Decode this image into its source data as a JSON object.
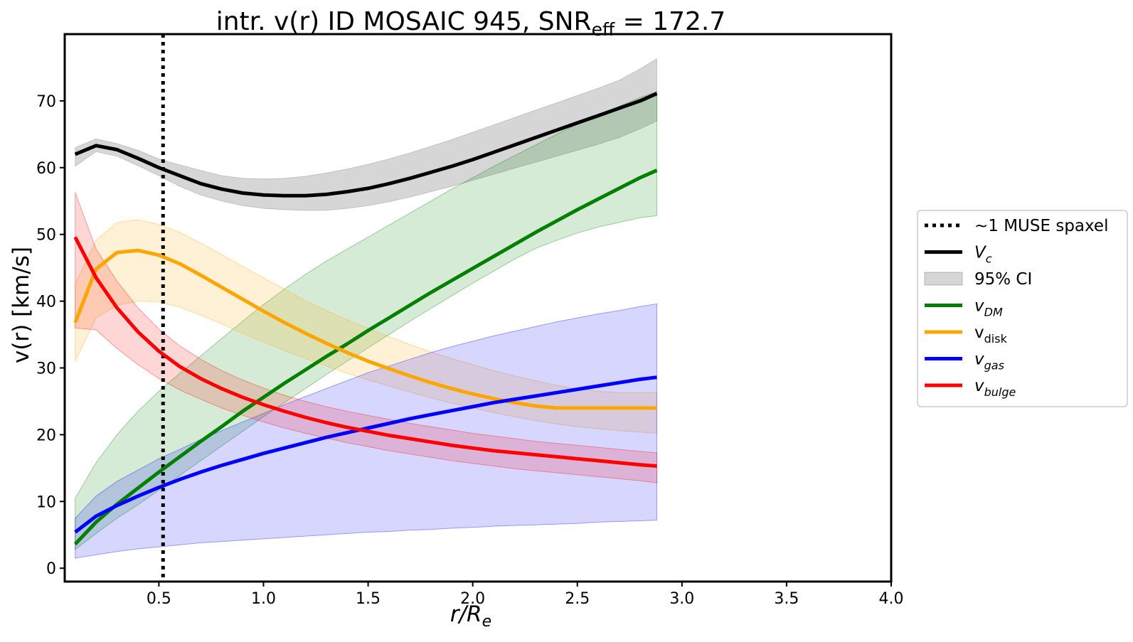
{
  "chart_data": {
    "type": "line",
    "title": "intr. v(r) ID MOSAIC 945, SNR",
    "title_sub": "eff",
    "title_suffix": " = 172.7",
    "xlabel": "r/R",
    "xlabel_sub": "e",
    "ylabel": "v(r) [km/s]",
    "xlim": [
      0.05,
      4.0
    ],
    "ylim": [
      -2,
      80
    ],
    "xticks": [
      0.5,
      1.0,
      1.5,
      2.0,
      2.5,
      3.0,
      3.5,
      4.0
    ],
    "xtick_labels": [
      "0.5",
      "1.0",
      "1.5",
      "2.0",
      "2.5",
      "3.0",
      "3.5",
      "4.0"
    ],
    "yticks": [
      0,
      10,
      20,
      30,
      40,
      50,
      60,
      70
    ],
    "ytick_labels": [
      "0",
      "10",
      "20",
      "30",
      "40",
      "50",
      "60",
      "70"
    ],
    "vline": {
      "x": 0.52,
      "label": "~1 MUSE spaxel"
    },
    "ci_label": "95% CI",
    "x": [
      0.1,
      0.2,
      0.3,
      0.4,
      0.5,
      0.6,
      0.7,
      0.8,
      0.9,
      1.0,
      1.1,
      1.2,
      1.3,
      1.4,
      1.5,
      1.6,
      1.7,
      1.8,
      1.9,
      2.0,
      2.1,
      2.2,
      2.3,
      2.4,
      2.5,
      2.6,
      2.7,
      2.8,
      2.88
    ],
    "series": [
      {
        "name": "V_c",
        "label": "V",
        "sub": "c",
        "italic": true,
        "color": "#000000",
        "band_color": "#808080",
        "values": [
          62.0,
          63.3,
          62.7,
          61.4,
          60.0,
          58.8,
          57.6,
          56.8,
          56.2,
          55.9,
          55.8,
          55.8,
          56.0,
          56.4,
          56.9,
          57.6,
          58.4,
          59.3,
          60.2,
          61.2,
          62.3,
          63.4,
          64.5,
          65.6,
          66.7,
          67.8,
          68.9,
          70.0,
          71.1
        ],
        "lower": [
          60.2,
          62.4,
          61.7,
          60.3,
          58.8,
          57.2,
          55.9,
          55.0,
          54.3,
          53.9,
          53.7,
          53.6,
          53.6,
          53.9,
          54.3,
          54.9,
          55.6,
          56.4,
          57.2,
          58.1,
          59.0,
          59.9,
          60.8,
          61.7,
          62.6,
          63.5,
          64.5,
          65.8,
          67.0
        ],
        "upper": [
          63.0,
          64.3,
          63.6,
          62.6,
          61.3,
          60.4,
          59.6,
          58.8,
          58.4,
          58.3,
          58.4,
          58.7,
          59.2,
          59.8,
          60.5,
          61.3,
          62.2,
          63.2,
          64.2,
          65.3,
          66.4,
          67.5,
          68.6,
          69.7,
          70.8,
          71.9,
          73.1,
          74.8,
          76.3
        ]
      },
      {
        "name": "v_DM",
        "label": "v",
        "sub": "DM",
        "italic": true,
        "color": "#008000",
        "band_color": "#008000",
        "values": [
          3.6,
          6.9,
          9.6,
          12.0,
          14.4,
          16.7,
          19.0,
          21.2,
          23.5,
          25.6,
          27.7,
          29.7,
          31.7,
          33.6,
          35.6,
          37.5,
          39.4,
          41.3,
          43.1,
          44.9,
          46.7,
          48.5,
          50.3,
          52.0,
          53.7,
          55.3,
          56.9,
          58.5,
          59.6
        ],
        "lower": [
          2.8,
          5.2,
          7.5,
          9.5,
          11.7,
          13.9,
          16.1,
          18.3,
          20.5,
          22.7,
          24.8,
          26.9,
          29.0,
          31.0,
          33.0,
          35.0,
          37.0,
          38.9,
          40.8,
          42.7,
          44.5,
          46.3,
          47.9,
          49.1,
          50.2,
          51.1,
          51.8,
          52.5,
          52.8
        ],
        "upper": [
          10.5,
          15.8,
          20.0,
          23.5,
          26.5,
          29.2,
          31.8,
          34.4,
          37.0,
          39.5,
          41.8,
          44.0,
          46.0,
          47.8,
          49.6,
          51.4,
          53.2,
          55.0,
          56.8,
          58.5,
          60.2,
          61.8,
          63.4,
          65.0,
          66.5,
          67.9,
          69.2,
          70.5,
          71.4
        ]
      },
      {
        "name": "v_disk",
        "label": "v",
        "sub": "disk",
        "italic": false,
        "color": "#ffa500",
        "band_color": "#ffa500",
        "values": [
          36.8,
          44.8,
          47.3,
          47.6,
          46.9,
          45.6,
          43.9,
          42.1,
          40.3,
          38.5,
          36.8,
          35.2,
          33.7,
          32.3,
          31.0,
          29.9,
          28.8,
          27.8,
          26.9,
          26.1,
          25.4,
          24.8,
          24.3,
          24.0,
          24.0,
          24.0,
          24.0,
          24.0,
          24.0
        ],
        "lower": [
          31.0,
          37.5,
          39.4,
          40.0,
          39.9,
          39.1,
          37.9,
          36.6,
          35.2,
          33.9,
          32.6,
          31.4,
          30.3,
          29.2,
          28.2,
          27.3,
          26.4,
          25.5,
          24.7,
          24.0,
          23.3,
          22.7,
          22.1,
          21.6,
          21.2,
          20.9,
          20.6,
          20.4,
          20.2
        ],
        "upper": [
          42.6,
          49.1,
          51.8,
          52.2,
          51.5,
          50.3,
          48.7,
          47.0,
          45.2,
          43.5,
          41.8,
          40.1,
          38.6,
          37.2,
          35.9,
          34.7,
          33.5,
          32.4,
          31.4,
          30.5,
          29.6,
          28.8,
          28.1,
          27.4,
          26.9,
          26.5,
          26.3,
          26.3,
          26.3
        ]
      },
      {
        "name": "v_gas",
        "label": "v",
        "sub": "gas",
        "italic": true,
        "color": "#0000ff",
        "band_color": "#0000ff",
        "values": [
          5.4,
          7.8,
          9.4,
          10.8,
          12.1,
          13.3,
          14.4,
          15.4,
          16.3,
          17.2,
          18.0,
          18.8,
          19.6,
          20.3,
          21.0,
          21.7,
          22.4,
          23.0,
          23.6,
          24.2,
          24.8,
          25.3,
          25.8,
          26.3,
          26.8,
          27.3,
          27.8,
          28.3,
          28.6
        ],
        "lower": [
          1.5,
          2.0,
          2.5,
          2.9,
          3.2,
          3.5,
          3.8,
          4.0,
          4.2,
          4.4,
          4.6,
          4.8,
          5.0,
          5.2,
          5.4,
          5.5,
          5.7,
          5.8,
          6.0,
          6.1,
          6.3,
          6.4,
          6.5,
          6.6,
          6.7,
          6.9,
          7.0,
          7.1,
          7.2
        ],
        "upper": [
          7.5,
          10.8,
          13.0,
          14.7,
          16.4,
          17.8,
          19.3,
          20.6,
          21.9,
          23.2,
          24.5,
          25.7,
          26.9,
          28.1,
          29.3,
          30.3,
          31.3,
          32.3,
          33.2,
          34.0,
          34.8,
          35.5,
          36.2,
          36.9,
          37.5,
          38.1,
          38.6,
          39.2,
          39.6
        ]
      },
      {
        "name": "v_bulge",
        "label": "v",
        "sub": "bulge",
        "italic": true,
        "color": "#ff0000",
        "band_color": "#ff0000",
        "values": [
          49.6,
          43.5,
          39.0,
          35.4,
          32.5,
          30.2,
          28.4,
          26.9,
          25.6,
          24.5,
          23.5,
          22.6,
          21.8,
          21.1,
          20.5,
          19.9,
          19.4,
          18.9,
          18.4,
          18.0,
          17.6,
          17.3,
          17.0,
          16.7,
          16.4,
          16.1,
          15.8,
          15.5,
          15.3
        ],
        "lower": [
          36.0,
          35.7,
          32.9,
          30.5,
          28.4,
          26.7,
          25.3,
          24.0,
          22.9,
          21.9,
          21.0,
          20.2,
          19.5,
          18.8,
          18.2,
          17.6,
          17.1,
          16.6,
          16.1,
          15.7,
          15.3,
          14.9,
          14.6,
          14.3,
          14.0,
          13.7,
          13.4,
          13.1,
          12.8
        ],
        "upper": [
          56.3,
          47.8,
          43.0,
          39.0,
          35.8,
          33.3,
          31.3,
          29.6,
          28.2,
          27.0,
          25.9,
          25.0,
          24.2,
          23.5,
          22.9,
          22.3,
          21.7,
          21.2,
          20.7,
          20.2,
          19.8,
          19.4,
          19.0,
          18.7,
          18.4,
          18.1,
          17.8,
          17.5,
          17.3
        ]
      }
    ]
  }
}
